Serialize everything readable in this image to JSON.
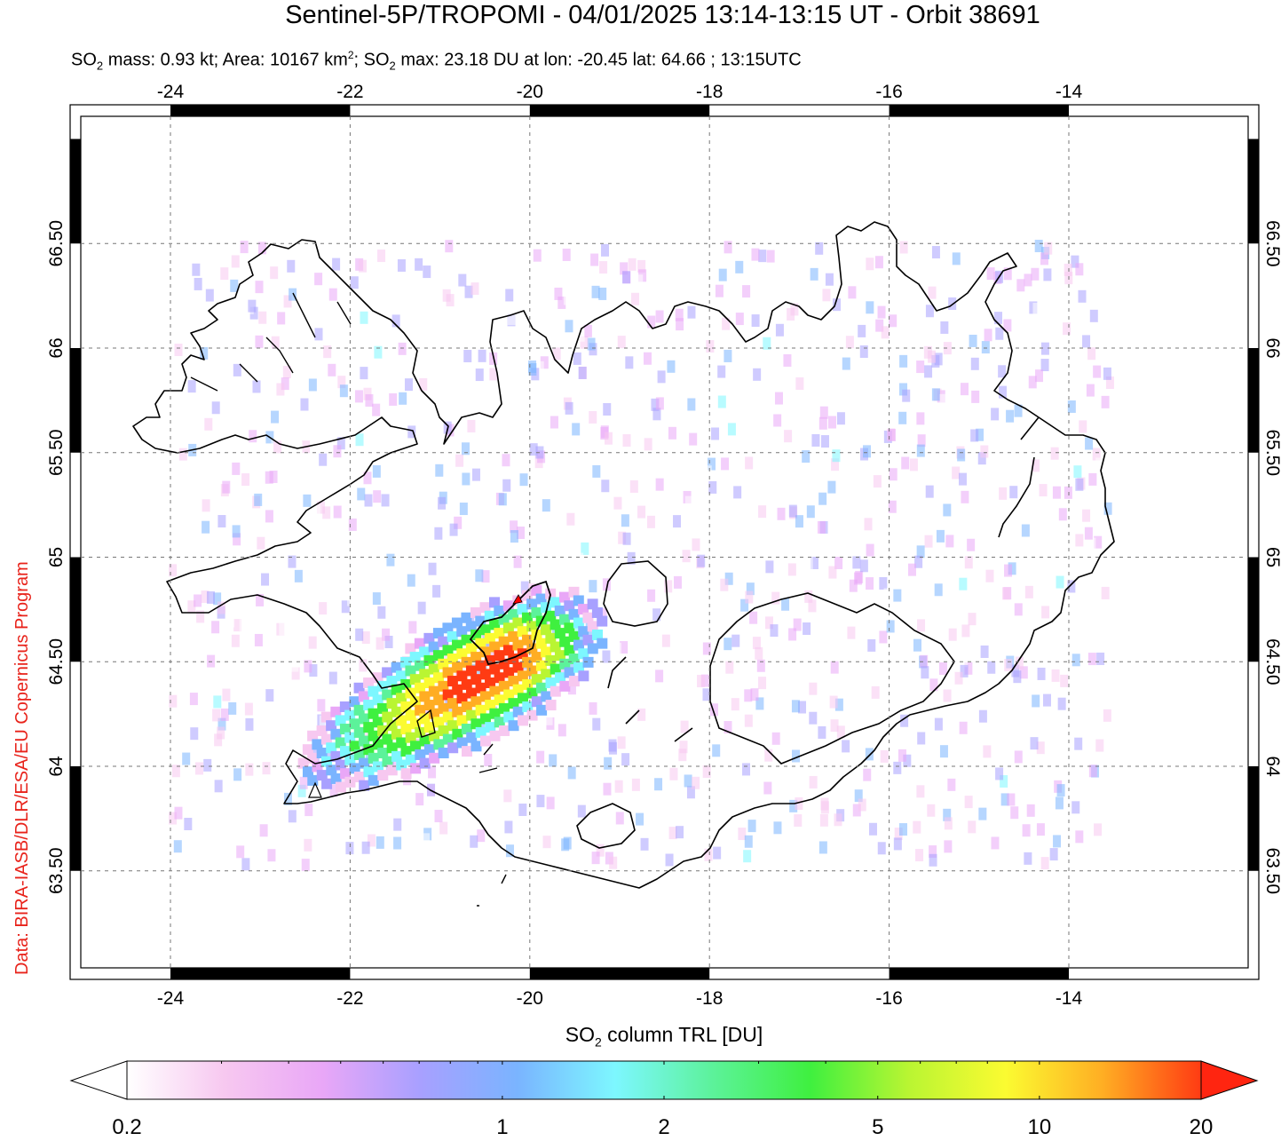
{
  "header": {
    "title": "Sentinel-5P/TROPOMI - 04/01/2025 13:14-13:15 UT - Orbit 38691",
    "subtitle_parts": {
      "p1": "SO",
      "p1_sub": "2",
      "p2": " mass: 0.93 kt; Area: 10167 km",
      "p2_sup": "2",
      "p3": "; SO",
      "p3_sub": "2",
      "p4": " max: 23.18 DU at lon: -20.45 lat: 64.66 ; 13:15UTC"
    }
  },
  "credit": "Data: BIRA-IASB/DLR/ESA/EU Copernicus Program",
  "map": {
    "lon_ticks": [
      "-24",
      "-22",
      "-20",
      "-18",
      "-16",
      "-14"
    ],
    "lat_ticks": [
      "63.50",
      "64",
      "64.50",
      "65",
      "65.50",
      "66",
      "66.50"
    ],
    "lon_range": [
      -25.1,
      -11.9
    ],
    "lat_range": [
      63.0,
      67.0
    ],
    "grid": true,
    "coastline_color": "#000000",
    "max_marker": {
      "lon": -20.45,
      "lat": 64.66,
      "value": 23.18
    }
  },
  "colorbar": {
    "title_main": "SO",
    "title_sub": "2",
    "title_rest": " column TRL [DU]",
    "tick_labels": [
      "0.2",
      "1",
      "2",
      "5",
      "10",
      "20"
    ],
    "tick_values": [
      0.2,
      1,
      2,
      5,
      10,
      20
    ],
    "scale": "log",
    "colors": [
      "#ffffff",
      "#f7c8f0",
      "#e9a7f7",
      "#a8a0ff",
      "#7ab4ff",
      "#7df7ff",
      "#5cf29a",
      "#3ff03f",
      "#b9f532",
      "#fbfb31",
      "#ffad23",
      "#ff3b13"
    ]
  }
}
